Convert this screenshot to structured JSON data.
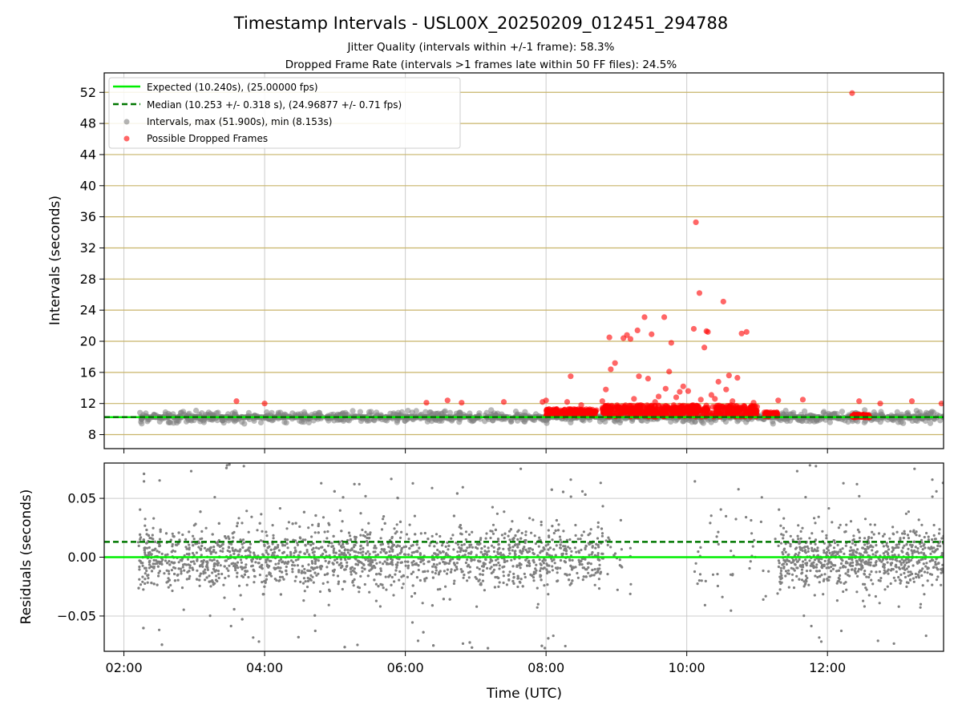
{
  "figure": {
    "title": "Timestamp Intervals - USL00X_20250209_012451_294788",
    "subtitle_1": "Jitter Quality (intervals within +/-1 frame): 58.3%",
    "subtitle_2": "Dropped Frame Rate (intervals >1 frames late within 50 FF files): 24.5%"
  },
  "chart_data": [
    {
      "type": "scatter",
      "panel": "top",
      "ylabel": "Intervals (seconds)",
      "xlabel": "",
      "x_unit": "hours UTC",
      "xlim": [
        1.72,
        13.65
      ],
      "ylim": [
        6.2,
        54.5
      ],
      "x_ticks": [
        2,
        4,
        6,
        8,
        10,
        12
      ],
      "y_ticks": [
        8,
        12,
        16,
        20,
        24,
        28,
        32,
        36,
        40,
        44,
        48,
        52
      ],
      "y_tick_labels": [
        "8",
        "12",
        "16",
        "20",
        "24",
        "28",
        "32",
        "36",
        "40",
        "44",
        "48",
        "52"
      ],
      "grid": true,
      "legend_position": "top-left",
      "legend": [
        "Expected (10.240s), (25.00000 fps)",
        "Median (10.253 +/- 0.318 s), (24.96877 +/- 0.71 fps)",
        "Intervals, max (51.900s), min (8.153s)",
        "Possible Dropped Frames"
      ],
      "expected_interval": 10.24,
      "median_interval": 10.253,
      "interval_max": 51.9,
      "interval_min": 8.153,
      "interval_cluster": {
        "x_start": 2.22,
        "x_end": 13.65,
        "center": 10.25,
        "spread": 0.9
      },
      "dropped_frames": [
        {
          "x": 3.6,
          "y": 12.3
        },
        {
          "x": 4.0,
          "y": 12.0
        },
        {
          "x": 6.3,
          "y": 12.1
        },
        {
          "x": 6.6,
          "y": 12.4
        },
        {
          "x": 6.8,
          "y": 12.1
        },
        {
          "x": 7.4,
          "y": 12.2
        },
        {
          "x": 7.95,
          "y": 12.2
        },
        {
          "x": 8.0,
          "y": 12.4
        },
        {
          "x": 8.3,
          "y": 12.2
        },
        {
          "x": 8.35,
          "y": 15.5
        },
        {
          "x": 8.5,
          "y": 11.8
        },
        {
          "x": 8.8,
          "y": 12.3
        },
        {
          "x": 8.85,
          "y": 13.8
        },
        {
          "x": 8.9,
          "y": 20.5
        },
        {
          "x": 8.92,
          "y": 16.4
        },
        {
          "x": 8.98,
          "y": 17.2
        },
        {
          "x": 9.1,
          "y": 20.4
        },
        {
          "x": 9.15,
          "y": 20.8
        },
        {
          "x": 9.2,
          "y": 20.3
        },
        {
          "x": 9.25,
          "y": 12.6
        },
        {
          "x": 9.3,
          "y": 21.4
        },
        {
          "x": 9.32,
          "y": 15.5
        },
        {
          "x": 9.4,
          "y": 23.1
        },
        {
          "x": 9.45,
          "y": 15.2
        },
        {
          "x": 9.5,
          "y": 20.9
        },
        {
          "x": 9.55,
          "y": 12.2
        },
        {
          "x": 9.6,
          "y": 12.9
        },
        {
          "x": 9.68,
          "y": 23.1
        },
        {
          "x": 9.7,
          "y": 13.9
        },
        {
          "x": 9.75,
          "y": 16.1
        },
        {
          "x": 9.78,
          "y": 19.8
        },
        {
          "x": 9.85,
          "y": 12.8
        },
        {
          "x": 9.9,
          "y": 13.5
        },
        {
          "x": 9.95,
          "y": 14.2
        },
        {
          "x": 10.02,
          "y": 13.6
        },
        {
          "x": 10.1,
          "y": 21.6
        },
        {
          "x": 10.13,
          "y": 35.3
        },
        {
          "x": 10.18,
          "y": 26.2
        },
        {
          "x": 10.2,
          "y": 12.5
        },
        {
          "x": 10.25,
          "y": 19.2
        },
        {
          "x": 10.28,
          "y": 21.3
        },
        {
          "x": 10.3,
          "y": 21.2
        },
        {
          "x": 10.35,
          "y": 13.1
        },
        {
          "x": 10.4,
          "y": 12.6
        },
        {
          "x": 10.45,
          "y": 14.8
        },
        {
          "x": 10.52,
          "y": 25.1
        },
        {
          "x": 10.56,
          "y": 13.8
        },
        {
          "x": 10.6,
          "y": 15.6
        },
        {
          "x": 10.65,
          "y": 12.3
        },
        {
          "x": 10.72,
          "y": 15.3
        },
        {
          "x": 10.78,
          "y": 21.0
        },
        {
          "x": 10.85,
          "y": 21.2
        },
        {
          "x": 10.95,
          "y": 12.1
        },
        {
          "x": 11.3,
          "y": 12.4
        },
        {
          "x": 11.65,
          "y": 12.5
        },
        {
          "x": 12.35,
          "y": 51.9
        },
        {
          "x": 12.45,
          "y": 12.3
        },
        {
          "x": 12.75,
          "y": 12.0
        },
        {
          "x": 13.2,
          "y": 12.3
        },
        {
          "x": 13.62,
          "y": 12.0
        }
      ],
      "dropped_dense_bands": [
        {
          "x_start": 8.0,
          "x_end": 8.72,
          "y_low": 10.4,
          "y_high": 11.3
        },
        {
          "x_start": 8.8,
          "x_end": 11.0,
          "y_low": 10.3,
          "y_high": 11.8
        },
        {
          "x_start": 11.1,
          "x_end": 11.3,
          "y_low": 10.3,
          "y_high": 10.9
        },
        {
          "x_start": 12.35,
          "x_end": 12.6,
          "y_low": 10.2,
          "y_high": 10.6
        }
      ]
    },
    {
      "type": "scatter",
      "panel": "bottom",
      "ylabel": "Residuals (seconds)",
      "xlabel": "Time (UTC)",
      "x_unit": "hours UTC",
      "xlim": [
        1.72,
        13.65
      ],
      "ylim": [
        -0.08,
        0.08
      ],
      "x_ticks": [
        2,
        4,
        6,
        8,
        10,
        12
      ],
      "x_tick_labels": [
        "02:00",
        "04:00",
        "06:00",
        "08:00",
        "10:00",
        "12:00"
      ],
      "y_ticks": [
        -0.05,
        0.0,
        0.05
      ],
      "y_tick_labels": [
        "−0.05",
        "0.00",
        "0.05"
      ],
      "grid": true,
      "expected_residual": 0.0,
      "median_residual": 0.013,
      "residual_ranges": [
        {
          "x_start": 2.2,
          "x_end": 8.8,
          "spread": 0.03,
          "density": 1.0
        },
        {
          "x_start": 8.8,
          "x_end": 9.3,
          "spread": 0.04,
          "density": 0.15
        },
        {
          "x_start": 10.1,
          "x_end": 11.3,
          "spread": 0.05,
          "density": 0.12
        },
        {
          "x_start": 11.3,
          "x_end": 13.65,
          "spread": 0.03,
          "density": 1.0
        }
      ]
    }
  ],
  "colors": {
    "expected_line": "#00ee00",
    "median_line": "#007700",
    "intervals": "#808080",
    "dropped": "#ff0000",
    "grid_x": "#cccccc",
    "grid_y": "#c8b469"
  }
}
